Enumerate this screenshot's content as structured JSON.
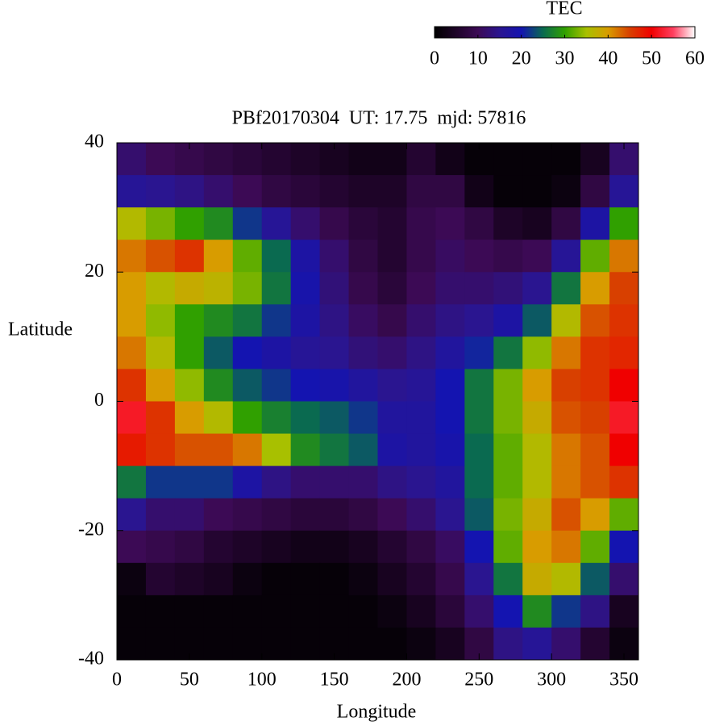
{
  "chart_data": {
    "type": "heatmap",
    "title": "PBf20170304  UT: 17.75  mjd: 57816",
    "x_label": "Longitude",
    "y_label": "Latitude",
    "colorbar_label": "TEC",
    "x": [
      10,
      30,
      50,
      70,
      90,
      110,
      130,
      150,
      170,
      190,
      210,
      230,
      250,
      270,
      290,
      310,
      330,
      350
    ],
    "y": [
      37.5,
      32.5,
      27.5,
      22.5,
      17.5,
      12.5,
      7.5,
      2.5,
      -2.5,
      -7.5,
      -12.5,
      -17.5,
      -22.5,
      -27.5,
      -32.5,
      -37.5
    ],
    "z": [
      [
        12,
        10,
        9,
        8,
        7,
        6,
        5,
        4,
        3,
        3,
        6,
        3,
        1,
        1,
        1,
        1,
        4,
        12
      ],
      [
        16,
        15,
        14,
        12,
        10,
        8,
        7,
        6,
        5,
        5,
        8,
        8,
        3,
        1,
        1,
        2,
        8,
        16
      ],
      [
        36,
        33,
        30,
        28,
        22,
        16,
        12,
        9,
        7,
        6,
        9,
        10,
        8,
        5,
        4,
        8,
        18,
        30
      ],
      [
        42,
        44,
        46,
        40,
        32,
        25,
        18,
        12,
        8,
        6,
        9,
        11,
        10,
        9,
        10,
        16,
        32,
        42
      ],
      [
        40,
        36,
        38,
        37,
        33,
        26,
        19,
        13,
        9,
        7,
        10,
        12,
        12,
        13,
        15,
        26,
        40,
        45
      ],
      [
        40,
        34,
        30,
        28,
        26,
        22,
        18,
        14,
        11,
        9,
        12,
        14,
        15,
        18,
        24,
        36,
        44,
        46
      ],
      [
        42,
        36,
        30,
        24,
        20,
        18,
        16,
        15,
        13,
        12,
        14,
        17,
        21,
        26,
        34,
        42,
        46,
        47
      ],
      [
        46,
        40,
        34,
        28,
        24,
        22,
        20,
        19,
        17,
        15,
        16,
        20,
        26,
        33,
        40,
        45,
        46,
        50
      ],
      [
        52,
        46,
        40,
        36,
        30,
        27,
        25,
        24,
        22,
        17,
        17,
        20,
        26,
        33,
        38,
        44,
        45,
        52
      ],
      [
        48,
        46,
        44,
        44,
        42,
        35,
        28,
        26,
        24,
        18,
        17,
        19,
        25,
        32,
        36,
        42,
        44,
        50
      ],
      [
        26,
        22,
        22,
        22,
        18,
        14,
        12,
        12,
        12,
        14,
        15,
        17,
        25,
        32,
        36,
        42,
        44,
        46
      ],
      [
        15,
        12,
        12,
        10,
        9,
        8,
        7,
        7,
        8,
        10,
        12,
        15,
        24,
        33,
        38,
        44,
        40,
        32
      ],
      [
        10,
        9,
        8,
        6,
        5,
        4,
        3,
        3,
        4,
        6,
        8,
        11,
        20,
        32,
        40,
        42,
        32,
        20
      ],
      [
        2,
        6,
        5,
        4,
        2,
        1,
        1,
        1,
        2,
        4,
        6,
        9,
        15,
        26,
        38,
        36,
        24,
        12
      ],
      [
        1,
        1,
        1,
        1,
        1,
        1,
        1,
        1,
        1,
        2,
        4,
        7,
        12,
        20,
        28,
        22,
        14,
        4
      ],
      [
        1,
        1,
        1,
        1,
        1,
        1,
        1,
        1,
        1,
        1,
        2,
        4,
        8,
        14,
        16,
        12,
        6,
        2
      ]
    ],
    "xlim": [
      0,
      360
    ],
    "xticks": [
      0,
      50,
      100,
      150,
      200,
      250,
      300,
      350
    ],
    "ylim": [
      -40,
      40
    ],
    "yticks": [
      -40,
      -20,
      0,
      20,
      40
    ],
    "zlim": [
      0,
      60
    ],
    "zticks": [
      0,
      10,
      20,
      30,
      40,
      50,
      60
    ],
    "colormap": [
      "#000000",
      "#1e0428",
      "#3c0a55",
      "#2a1590",
      "#1414b0",
      "#0a6a50",
      "#30a000",
      "#a8c000",
      "#d89c00",
      "#d84000",
      "#f00000",
      "#ff4060",
      "#ffffff"
    ]
  }
}
